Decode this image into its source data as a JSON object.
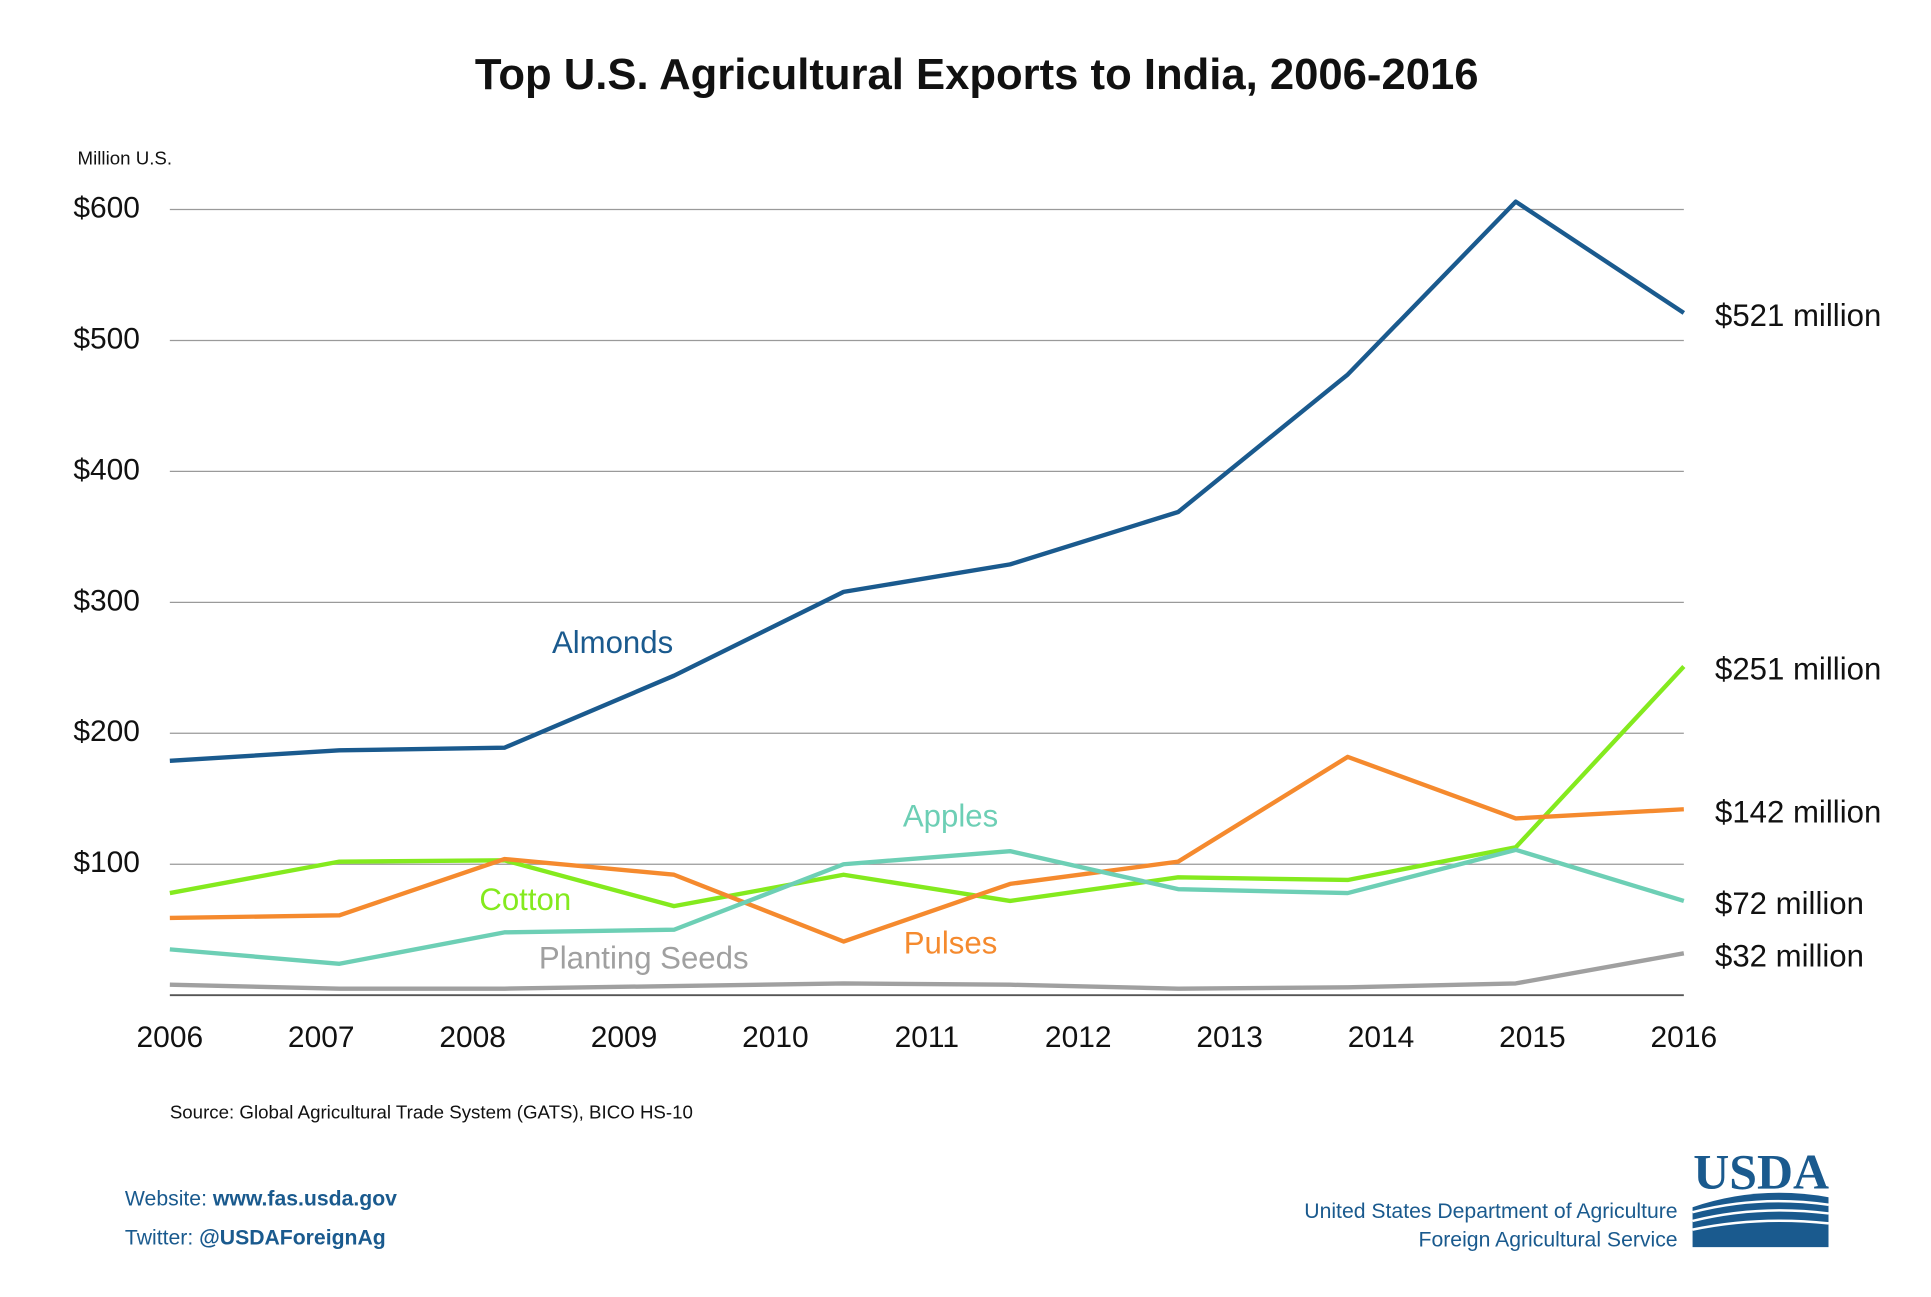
{
  "chart_data": {
    "type": "line",
    "title": "Top U.S. Agricultural Exports to India, 2006-2016",
    "y_axis_label": "Million U.S.",
    "source": "Source: Global Agricultural Trade System (GATS), BICO HS-10",
    "x": [
      2006,
      2007.12,
      2008.21,
      2009.33,
      2010.45,
      2011.55,
      2012.66,
      2013.78,
      2014.89,
      2016
    ],
    "xlim": [
      2006,
      2016
    ],
    "xticks": [
      2006,
      2007,
      2008,
      2009,
      2010,
      2011,
      2012,
      2013,
      2014,
      2015,
      2016
    ],
    "ylim": [
      0,
      600
    ],
    "yticks": [
      {
        "value": 100,
        "label": "$100"
      },
      {
        "value": 200,
        "label": "$200"
      },
      {
        "value": 300,
        "label": "$300"
      },
      {
        "value": 400,
        "label": "$400"
      },
      {
        "value": 500,
        "label": "$500"
      },
      {
        "value": 600,
        "label": "$600"
      }
    ],
    "grid": true,
    "series": [
      {
        "name": "Almonds",
        "color": "#1a5a8e",
        "values": [
          179,
          187,
          189,
          244,
          308,
          329,
          369,
          474,
          606,
          521
        ],
        "value_labels": [
          null,
          null,
          null,
          null,
          null,
          null,
          null,
          null,
          null,
          "$521 million"
        ]
      },
      {
        "name": "Cotton",
        "color": "#84ea1e",
        "values": [
          78,
          102,
          103,
          68,
          92,
          72,
          90,
          88,
          113,
          251
        ],
        "value_labels": [
          null,
          null,
          null,
          null,
          null,
          null,
          null,
          null,
          null,
          "$251 million"
        ]
      },
      {
        "name": "Pulses",
        "color": "#f58a2e",
        "values": [
          59,
          61,
          104,
          92,
          41,
          85,
          102,
          182,
          135,
          142
        ],
        "value_labels": [
          null,
          null,
          null,
          null,
          null,
          null,
          null,
          null,
          null,
          "$142 million"
        ]
      },
      {
        "name": "Apples",
        "color": "#6dcfb5",
        "values": [
          35,
          24,
          48,
          50,
          100,
          110,
          81,
          78,
          111,
          72
        ],
        "value_labels": [
          null,
          null,
          null,
          null,
          null,
          null,
          null,
          null,
          null,
          "$72 million"
        ]
      },
      {
        "name": "Planting Seeds",
        "color": "#a0a0a0",
        "values": [
          8,
          5,
          5,
          7,
          9,
          8,
          5,
          6,
          9,
          32
        ],
        "value_labels": [
          null,
          null,
          null,
          null,
          null,
          null,
          null,
          null,
          null,
          "$32 million"
        ]
      }
    ]
  },
  "footer": {
    "website_label": "Website:",
    "website": "www.fas.usda.gov",
    "twitter_label": "Twitter:",
    "twitter": "@USDAForeignAg",
    "logo": "USDA",
    "agency_line1": "United States Department of Agriculture",
    "agency_line2": "Foreign Agricultural Service"
  }
}
